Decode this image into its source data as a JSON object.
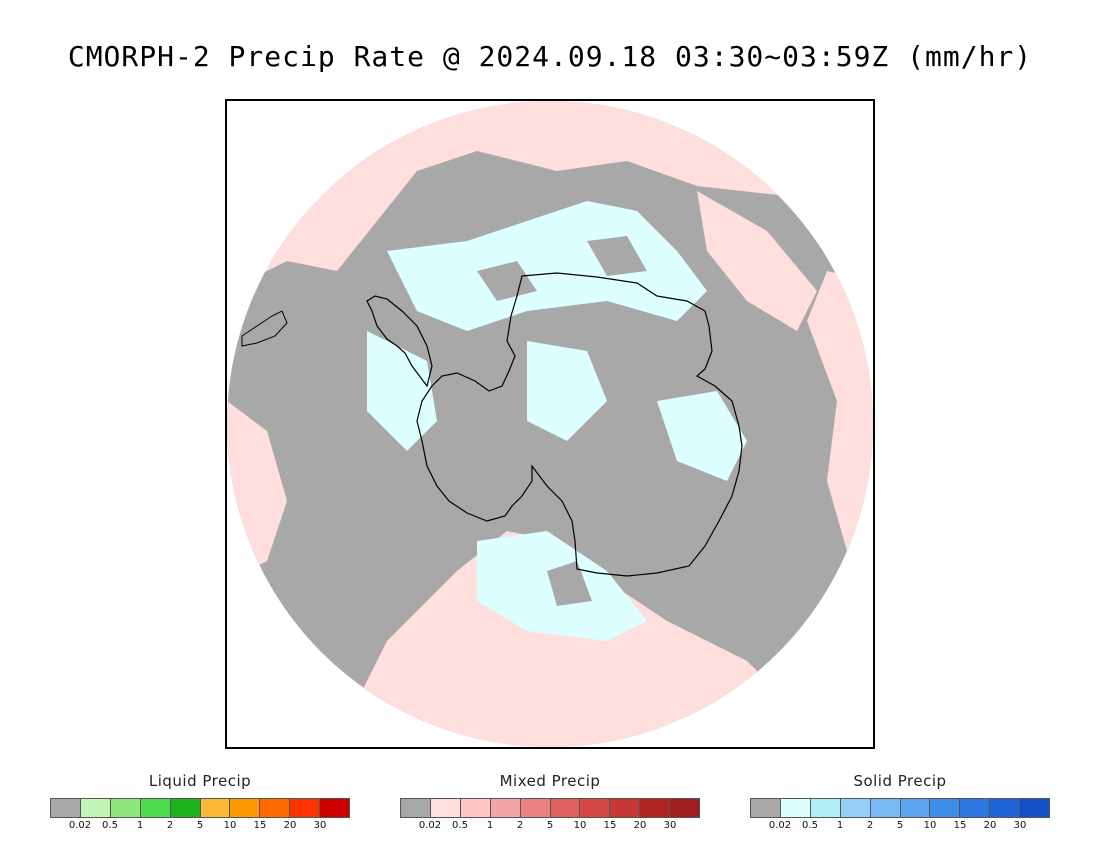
{
  "title": "CMORPH-2 Precip Rate @ 2024.09.18 03:30~03:59Z (mm/hr)",
  "map": {
    "projection": "south-polar-stereographic",
    "colors": {
      "no_precip_gray": "#a8a8a8",
      "mixed_light_pink": "#ffdede",
      "solid_light_cyan": "#ddffff",
      "liquid_light_green": "#c4f5b8",
      "coastline": "#000000"
    }
  },
  "legends": [
    {
      "title": "Liquid Precip",
      "colors": [
        "#a8a8a8",
        "#c4f5b8",
        "#8ee87e",
        "#4fdd4f",
        "#1fb21f",
        "#fdb934",
        "#ff9a00",
        "#ff6a00",
        "#ff3300",
        "#cc0000"
      ],
      "ticks": [
        "0.02",
        "0.5",
        "1",
        "2",
        "5",
        "10",
        "15",
        "20",
        "30"
      ]
    },
    {
      "title": "Mixed Precip",
      "colors": [
        "#a8a8a8",
        "#ffdede",
        "#ffc4c4",
        "#f4a4a4",
        "#ea8080",
        "#e06060",
        "#d44848",
        "#c83636",
        "#b22424",
        "#a01e1e"
      ],
      "ticks": [
        "0.02",
        "0.5",
        "1",
        "2",
        "5",
        "10",
        "15",
        "20",
        "30"
      ]
    },
    {
      "title": "Solid Precip",
      "colors": [
        "#a8a8a8",
        "#ddffff",
        "#b0eef8",
        "#94d0f8",
        "#78b8f4",
        "#5aa4f0",
        "#3c8ce8",
        "#2c78e0",
        "#1f64d8",
        "#1450c8"
      ],
      "ticks": [
        "0.02",
        "0.5",
        "1",
        "2",
        "5",
        "10",
        "15",
        "20",
        "30"
      ]
    }
  ]
}
